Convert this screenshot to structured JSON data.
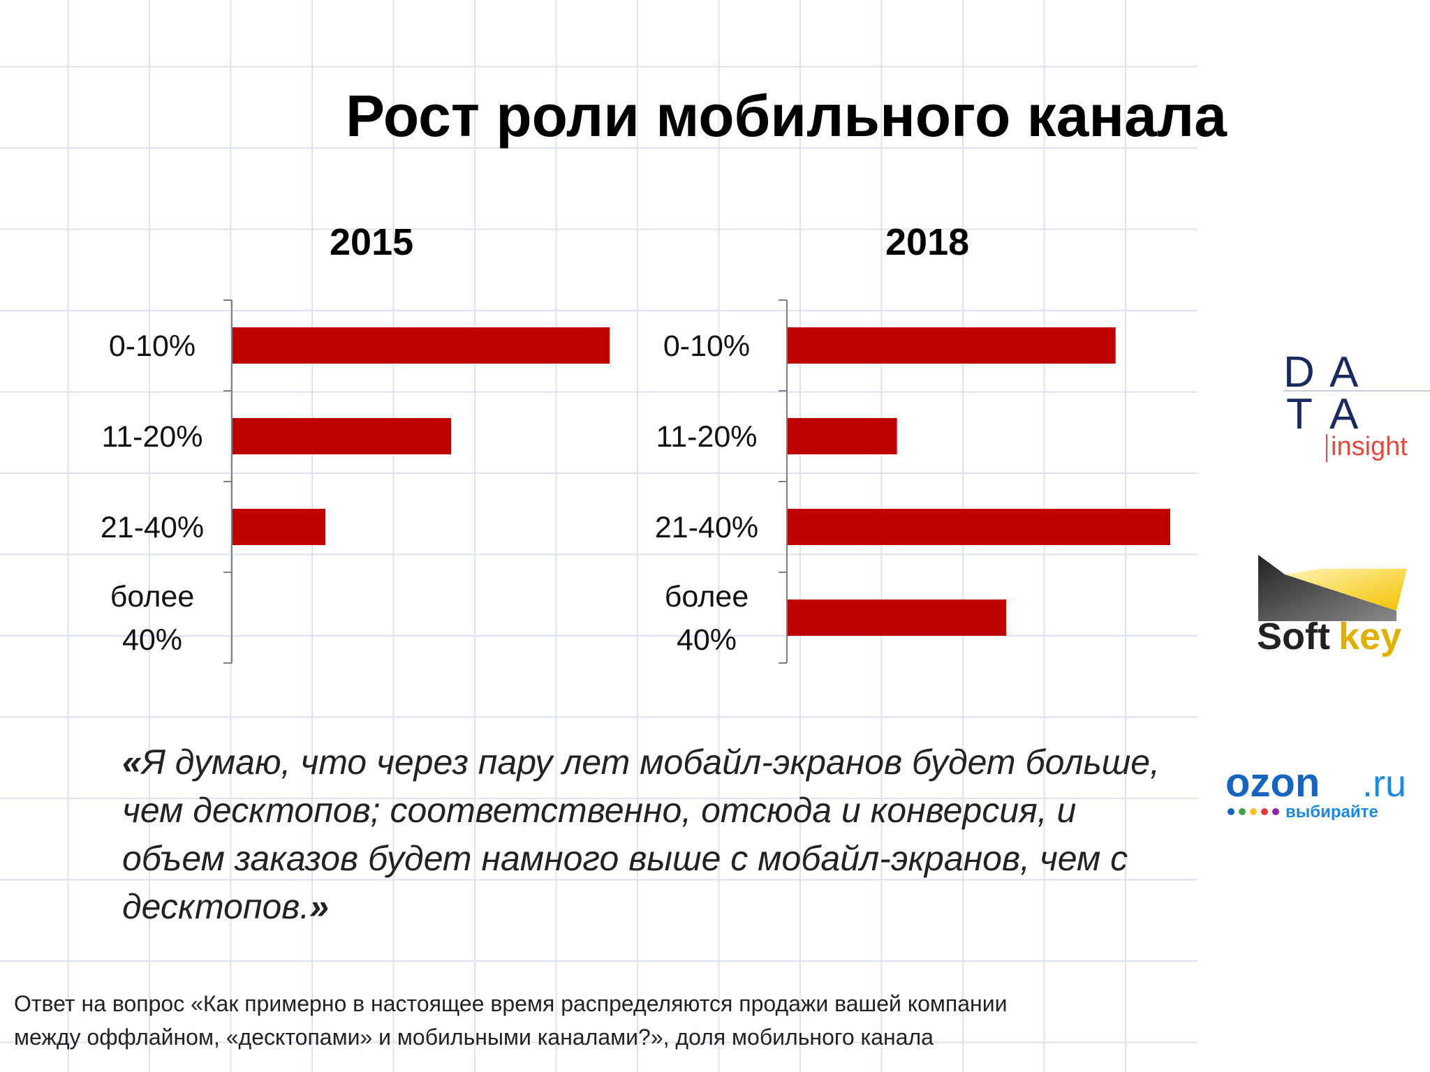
{
  "slide": {
    "title": "Рост роли мобильного канала",
    "quote_open": "«",
    "quote_text": "Я думаю, что через пару лет мобайл-экранов будет больше, чем десктопов;  соответственно, отсюда и конверсия, и объем заказов будет намного выше с мобайл-экранов, чем с десктопов.",
    "quote_close": "»",
    "footnote_line1": "Ответ на вопрос «Как примерно в настоящее время распределяются продажи вашей компании",
    "footnote_line2": "между оффлайном, «десктопами» и мобильными каналами?»,  доля мобильного канала"
  },
  "colors": {
    "bar": "#c00000",
    "axis": "#7f7f7f",
    "accent_red": "#e8473c",
    "ozon_blue": "#1565c0"
  },
  "logos": [
    {
      "name": "data-insight-logo",
      "letters": [
        "D",
        "A",
        "T",
        "A"
      ],
      "sub": "insight"
    },
    {
      "name": "softkey-logo",
      "text_dark": "Soft",
      "text_yellow": "key"
    },
    {
      "name": "ozon-logo",
      "text": "ozon",
      "suffix": ".ru",
      "tagline": "выбирайте"
    }
  ],
  "chart_data": [
    {
      "type": "bar",
      "orientation": "horizontal",
      "title": "2015",
      "categories": [
        "0-10%",
        "11-20%",
        "21-40%",
        "более 40%"
      ],
      "values": [
        69,
        40,
        17,
        0
      ],
      "xlim": [
        0,
        70
      ],
      "grid": false,
      "legend": "none"
    },
    {
      "type": "bar",
      "orientation": "horizontal",
      "title": "2018",
      "categories": [
        "0-10%",
        "11-20%",
        "21-40%",
        "более 40%"
      ],
      "values": [
        60,
        20,
        70,
        40
      ],
      "xlim": [
        0,
        70
      ],
      "grid": false,
      "legend": "none"
    }
  ]
}
